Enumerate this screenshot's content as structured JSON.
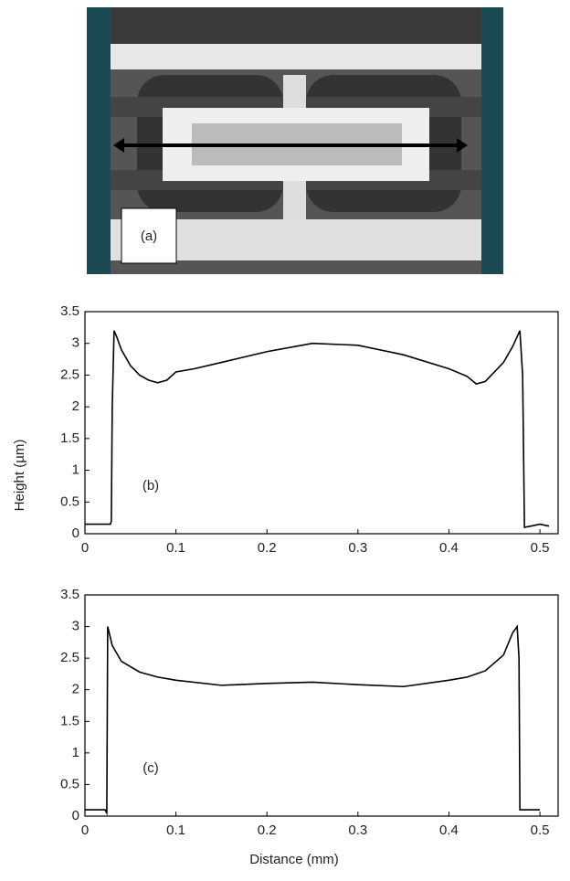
{
  "image_panel": {
    "label": "(a)"
  },
  "chart_data": [
    {
      "type": "line",
      "ylabel": "Height (µm)",
      "annotation": "(b)",
      "x": [
        0,
        0.028,
        0.029,
        0.03,
        0.032,
        0.035,
        0.04,
        0.05,
        0.06,
        0.07,
        0.08,
        0.09,
        0.1,
        0.12,
        0.15,
        0.2,
        0.25,
        0.3,
        0.35,
        0.4,
        0.42,
        0.43,
        0.44,
        0.45,
        0.46,
        0.47,
        0.478,
        0.481,
        0.483,
        0.49,
        0.5,
        0.51
      ],
      "series": [
        {
          "color": "#000000",
          "values": [
            0.15,
            0.15,
            0.2,
            2.0,
            3.2,
            3.1,
            2.9,
            2.65,
            2.5,
            2.42,
            2.38,
            2.42,
            2.55,
            2.6,
            2.7,
            2.87,
            3.0,
            2.97,
            2.82,
            2.6,
            2.48,
            2.36,
            2.4,
            2.55,
            2.7,
            2.95,
            3.2,
            2.5,
            0.1,
            0.12,
            0.15,
            0.12
          ]
        }
      ],
      "xlim": [
        0,
        0.52
      ],
      "ylim": [
        0,
        3.5
      ],
      "xticks": [
        0,
        0.1,
        0.2,
        0.3,
        0.4,
        0.5
      ],
      "yticks": [
        0,
        0.5,
        1,
        1.5,
        2,
        2.5,
        3,
        3.5
      ]
    },
    {
      "type": "line",
      "xlabel": "Distance (mm)",
      "annotation": "(c)",
      "x": [
        0,
        0.022,
        0.024,
        0.025,
        0.03,
        0.04,
        0.06,
        0.08,
        0.1,
        0.15,
        0.2,
        0.25,
        0.3,
        0.35,
        0.4,
        0.42,
        0.44,
        0.46,
        0.47,
        0.475,
        0.477,
        0.478,
        0.5
      ],
      "series": [
        {
          "color": "#000000",
          "values": [
            0.1,
            0.1,
            0.05,
            3.0,
            2.7,
            2.45,
            2.28,
            2.2,
            2.15,
            2.07,
            2.1,
            2.12,
            2.08,
            2.05,
            2.15,
            2.2,
            2.3,
            2.55,
            2.9,
            3.0,
            2.5,
            0.1,
            0.1
          ]
        }
      ],
      "xlim": [
        0,
        0.52
      ],
      "ylim": [
        0,
        3.5
      ],
      "xticks": [
        0,
        0.1,
        0.2,
        0.3,
        0.4,
        0.5
      ],
      "yticks": [
        0,
        0.5,
        1,
        1.5,
        2,
        2.5,
        3,
        3.5
      ]
    }
  ]
}
